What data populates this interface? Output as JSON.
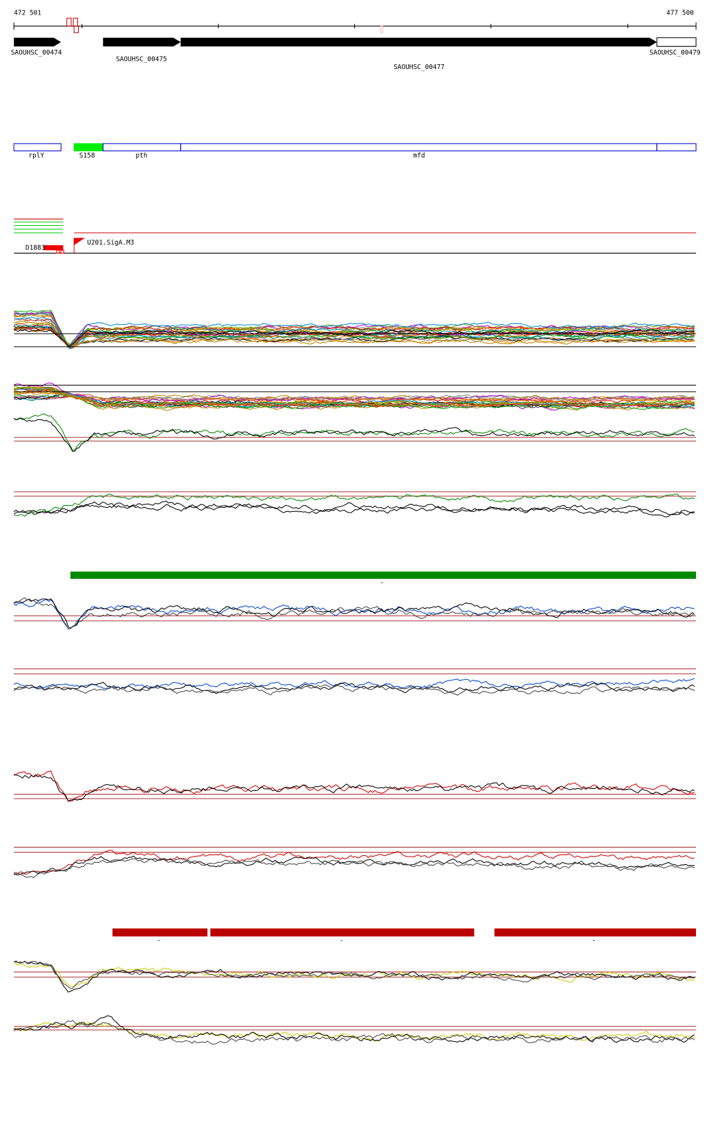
{
  "header": {
    "start": "472 501",
    "end": "477 500"
  },
  "genes": [
    {
      "label": "SAOUHSC_00474"
    },
    {
      "label": "SAOUHSC_00475"
    },
    {
      "label": "SAOUHSC_00477"
    },
    {
      "label": "SAOUHSC_00479"
    }
  ],
  "features": [
    {
      "label": "rplY"
    },
    {
      "label": "S158"
    },
    {
      "label": "pth"
    },
    {
      "label": "mfd"
    }
  ],
  "regulators": {
    "site": "D1883",
    "promoter": "U201.SigA.M3"
  },
  "segments": [
    {
      "label": "-"
    },
    {
      "label": "-"
    },
    {
      "label": "-"
    },
    {
      "label": "-"
    }
  ]
}
